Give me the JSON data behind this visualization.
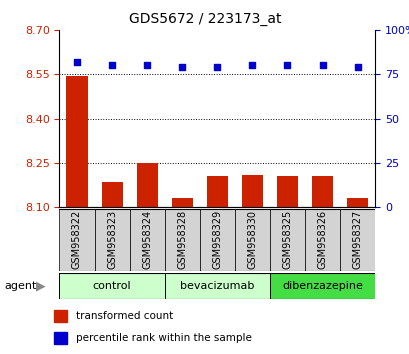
{
  "title": "GDS5672 / 223173_at",
  "samples": [
    "GSM958322",
    "GSM958323",
    "GSM958324",
    "GSM958328",
    "GSM958329",
    "GSM958330",
    "GSM958325",
    "GSM958326",
    "GSM958327"
  ],
  "bar_values": [
    8.545,
    8.185,
    8.25,
    8.13,
    8.205,
    8.21,
    8.205,
    8.205,
    8.13
  ],
  "percentile_values": [
    82,
    80,
    80,
    79,
    79,
    80,
    80,
    80,
    79
  ],
  "bar_color": "#cc2200",
  "percentile_color": "#0000cc",
  "ylim_left": [
    8.1,
    8.7
  ],
  "ylim_right": [
    0,
    100
  ],
  "yticks_left": [
    8.1,
    8.25,
    8.4,
    8.55,
    8.7
  ],
  "yticks_right": [
    0,
    25,
    50,
    75,
    100
  ],
  "grid_values": [
    8.25,
    8.4,
    8.55
  ],
  "groups": [
    {
      "label": "control",
      "indices": [
        0,
        1,
        2
      ],
      "color": "#ccffcc"
    },
    {
      "label": "bevacizumab",
      "indices": [
        3,
        4,
        5
      ],
      "color": "#ccffcc"
    },
    {
      "label": "dibenzazepine",
      "indices": [
        6,
        7,
        8
      ],
      "color": "#44dd44"
    }
  ],
  "agent_label": "agent",
  "legend_bar_label": "transformed count",
  "legend_pct_label": "percentile rank within the sample",
  "bar_width": 0.6,
  "base_value": 8.1,
  "background_color": "#ffffff",
  "tick_label_color_left": "#cc2200",
  "tick_label_color_right": "#0000cc",
  "sample_box_color": "#d3d3d3",
  "title_fontsize": 10,
  "tick_fontsize": 8,
  "label_fontsize": 7,
  "group_fontsize": 8
}
